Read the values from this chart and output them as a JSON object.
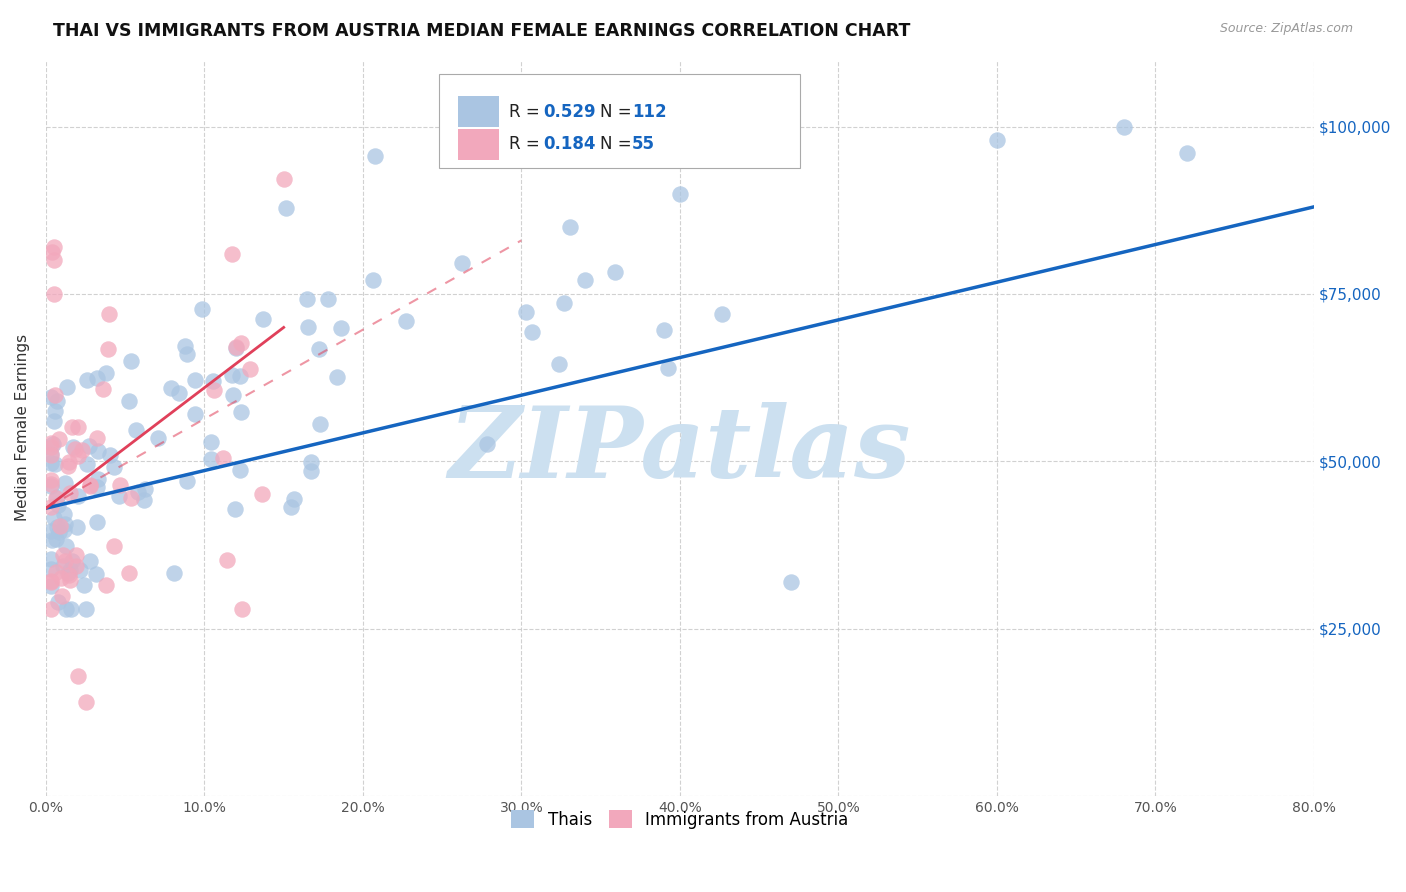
{
  "title": "THAI VS IMMIGRANTS FROM AUSTRIA MEDIAN FEMALE EARNINGS CORRELATION CHART",
  "source": "Source: ZipAtlas.com",
  "ylabel": "Median Female Earnings",
  "xlim": [
    0.0,
    0.8
  ],
  "ylim": [
    0,
    110000
  ],
  "yticks": [
    0,
    25000,
    50000,
    75000,
    100000
  ],
  "ytick_labels": [
    "",
    "$25,000",
    "$50,000",
    "$75,000",
    "$100,000"
  ],
  "xtick_labels": [
    "0.0%",
    "10.0%",
    "20.0%",
    "30.0%",
    "40.0%",
    "50.0%",
    "60.0%",
    "70.0%",
    "80.0%"
  ],
  "xticks": [
    0.0,
    0.1,
    0.2,
    0.3,
    0.4,
    0.5,
    0.6,
    0.7,
    0.8
  ],
  "thai_color": "#aac5e2",
  "austria_color": "#f2a8bc",
  "trend_blue": "#1565c0",
  "trend_pink": "#e0405a",
  "background_color": "#ffffff",
  "grid_color": "#cccccc",
  "watermark_text": "ZIPatlas",
  "watermark_color": "#cce0f0",
  "legend_R_thai": "0.529",
  "legend_N_thai": "112",
  "legend_R_austria": "0.184",
  "legend_N_austria": "55"
}
